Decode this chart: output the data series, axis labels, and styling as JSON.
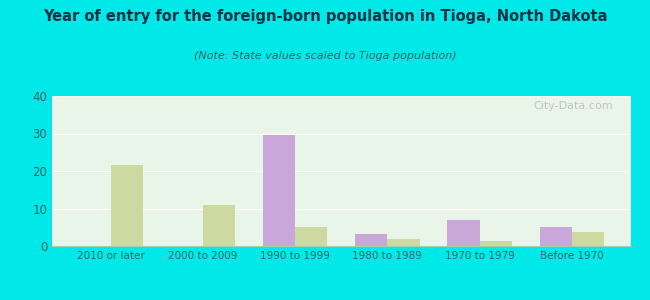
{
  "title": "Year of entry for the foreign-born population in Tioga, North Dakota",
  "subtitle": "(Note: State values scaled to Tioga population)",
  "categories": [
    "2010 or later",
    "2000 to 2009",
    "1990 to 1999",
    "1980 to 1989",
    "1970 to 1979",
    "Before 1970"
  ],
  "tioga_values": [
    0,
    0,
    29.5,
    3.2,
    7.0,
    5.2
  ],
  "nd_values": [
    21.5,
    11.0,
    5.2,
    1.8,
    1.3,
    3.8
  ],
  "tioga_color": "#c9a8d9",
  "nd_color": "#cdd9a0",
  "background_outer": "#00e8e8",
  "background_inner": "#e8f5e8",
  "ylim": [
    0,
    40
  ],
  "yticks": [
    0,
    10,
    20,
    30,
    40
  ],
  "bar_width": 0.35,
  "watermark": "City-Data.com",
  "title_color": "#003344",
  "subtitle_color": "#336666",
  "tick_color": "#336666",
  "grid_color": "#ffffff",
  "spine_color": "#aaccaa"
}
